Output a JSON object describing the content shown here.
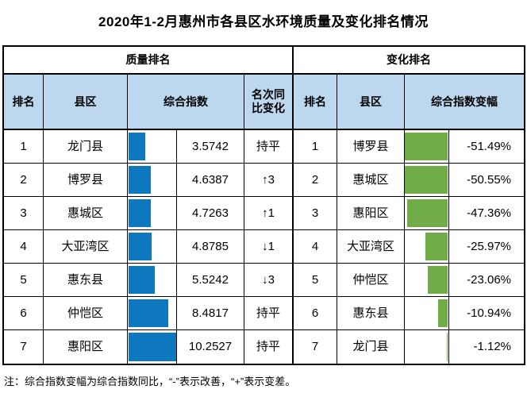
{
  "title": "2020年1-2月惠州市各县区水环境质量及变化排名情况",
  "note": "注：综合指数变幅为综合指数同比，“-”表示改善，“+”表示变差。",
  "colors": {
    "header_fill": "#bdd7ee",
    "quality_bar": "#0d78be",
    "change_bar": "#70ad47",
    "border": "#000000"
  },
  "quality": {
    "section_title": "质量排名",
    "headers": {
      "rank": "排名",
      "district": "县区",
      "index": "综合指数",
      "rank_change": "名次同比变化"
    },
    "rows": [
      {
        "rank": "1",
        "district": "龙门县",
        "index": "3.5742",
        "rank_change": "持平"
      },
      {
        "rank": "2",
        "district": "博罗县",
        "index": "4.6387",
        "rank_change": "↑3"
      },
      {
        "rank": "3",
        "district": "惠城区",
        "index": "4.7263",
        "rank_change": "↑1"
      },
      {
        "rank": "4",
        "district": "大亚湾区",
        "index": "4.8785",
        "rank_change": "↓1"
      },
      {
        "rank": "5",
        "district": "惠东县",
        "index": "5.5242",
        "rank_change": "↓3"
      },
      {
        "rank": "6",
        "district": "仲恺区",
        "index": "8.4817",
        "rank_change": "持平"
      },
      {
        "rank": "7",
        "district": "惠阳区",
        "index": "10.2527",
        "rank_change": "持平"
      }
    ]
  },
  "change": {
    "section_title": "变化排名",
    "headers": {
      "rank": "排名",
      "district": "县区",
      "index_change": "综合指数变幅"
    },
    "rows": [
      {
        "rank": "1",
        "district": "博罗县",
        "index_change": "-51.49%"
      },
      {
        "rank": "2",
        "district": "惠城区",
        "index_change": "-50.55%"
      },
      {
        "rank": "3",
        "district": "惠阳区",
        "index_change": "-47.36%"
      },
      {
        "rank": "4",
        "district": "大亚湾区",
        "index_change": "-25.97%"
      },
      {
        "rank": "5",
        "district": "仲恺区",
        "index_change": "-23.06%"
      },
      {
        "rank": "6",
        "district": "惠东县",
        "index_change": "-10.94%"
      },
      {
        "rank": "7",
        "district": "龙门县",
        "index_change": "-1.12%"
      }
    ]
  },
  "chart_data": {
    "type": "table",
    "title": "2020年1-2月惠州市各县区水环境质量及变化排名情况",
    "sections": [
      {
        "name": "质量排名",
        "columns": [
          "排名",
          "县区",
          "综合指数",
          "名次同比变化"
        ],
        "rows": [
          [
            1,
            "龙门县",
            3.5742,
            "持平"
          ],
          [
            2,
            "博罗县",
            4.6387,
            "↑3"
          ],
          [
            3,
            "惠城区",
            4.7263,
            "↑1"
          ],
          [
            4,
            "大亚湾区",
            4.8785,
            "↓1"
          ],
          [
            5,
            "惠东县",
            5.5242,
            "↓3"
          ],
          [
            6,
            "仲恺区",
            8.4817,
            "持平"
          ],
          [
            7,
            "惠阳区",
            10.2527,
            "持平"
          ]
        ],
        "bar_encoding": "blue data bar, left-anchored, width proportional to 综合指数, max 10.2527",
        "bar_color": "#0d78be"
      },
      {
        "name": "变化排名",
        "columns": [
          "排名",
          "县区",
          "综合指数变幅"
        ],
        "rows": [
          [
            1,
            "博罗县",
            -51.49
          ],
          [
            2,
            "惠城区",
            -50.55
          ],
          [
            3,
            "惠阳区",
            -47.36
          ],
          [
            4,
            "大亚湾区",
            -25.97
          ],
          [
            5,
            "仲恺区",
            -23.06
          ],
          [
            6,
            "惠东县",
            -10.94
          ],
          [
            7,
            "龙门县",
            -1.12
          ]
        ],
        "unit": "%",
        "bar_encoding": "green data bar, right-anchored, width proportional to |综合指数变幅|, max 51.49",
        "bar_color": "#70ad47"
      }
    ],
    "note": "注：综合指数变幅为综合指数同比，“-”表示改善，“+”表示变差。"
  }
}
